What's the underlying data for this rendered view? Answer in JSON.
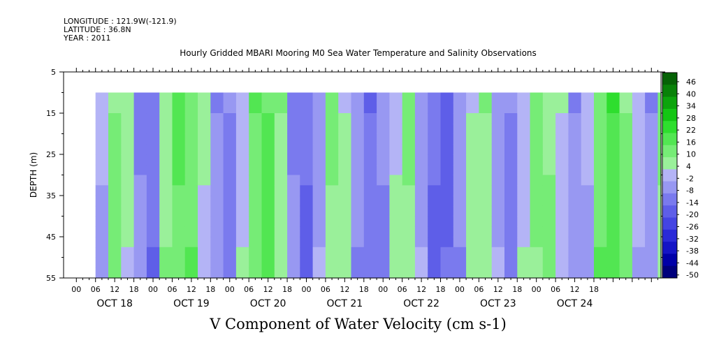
{
  "header": {
    "longitude": "LONGITUDE : 121.9W(-121.9)",
    "latitude": "LATITUDE : 36.8N",
    "year": "YEAR : 2011"
  },
  "title": "Hourly Gridded MBARI Mooring M0 Sea Water Temperature and Salinity Observations",
  "variable_title": "V Component of Water Velocity (cm s-1)",
  "chart_data": {
    "type": "heatmap",
    "title": "Hourly Gridded MBARI Mooring M0 Sea Water Temperature and Salinity Observations",
    "xlabel": "",
    "ylabel": "DEPTH (m)",
    "colorbar_label": "V Component of Water Velocity (cm s-1)",
    "x_tick_labels": [
      "00",
      "06",
      "12",
      "18",
      "00",
      "06",
      "12",
      "18",
      "00",
      "06",
      "12",
      "18",
      "00",
      "06",
      "12",
      "18",
      "00",
      "06",
      "12",
      "18",
      "00",
      "06",
      "12",
      "18",
      "00",
      "06",
      "12",
      "18"
    ],
    "x_date_labels": [
      "OCT 18",
      "OCT 19",
      "OCT 20",
      "OCT 21",
      "OCT 22",
      "OCT 23",
      "OCT 24"
    ],
    "x_range_hours": [
      -4,
      183
    ],
    "data_start_hour": 6,
    "data_end_hour": 183,
    "y_range": [
      5,
      55
    ],
    "y_ticks": [
      5,
      15,
      25,
      35,
      45,
      55
    ],
    "y_invert": true,
    "data_depth_range": [
      10,
      55
    ],
    "colorbar_levels": [
      -50,
      -44,
      -38,
      -32,
      -26,
      -20,
      -14,
      -8,
      -2,
      4,
      10,
      16,
      22,
      28,
      34,
      40,
      46
    ],
    "colorbar_ticks": [
      "46",
      "40",
      "34",
      "28",
      "22",
      "16",
      "10",
      "4",
      "-2",
      "-8",
      "-14",
      "-20",
      "-26",
      "-32",
      "-38",
      "-44",
      "-50"
    ],
    "columns": [
      {
        "hour": 6,
        "v": -2
      },
      {
        "hour": 10,
        "v": 12
      },
      {
        "hour": 14,
        "v": 6
      },
      {
        "hour": 18,
        "v": -8
      },
      {
        "hour": 22,
        "v": -12
      },
      {
        "hour": 26,
        "v": 8
      },
      {
        "hour": 30,
        "v": 16
      },
      {
        "hour": 34,
        "v": 14
      },
      {
        "hour": 38,
        "v": 4
      },
      {
        "hour": 42,
        "v": -6
      },
      {
        "hour": 46,
        "v": -10
      },
      {
        "hour": 50,
        "v": 2
      },
      {
        "hour": 54,
        "v": 14
      },
      {
        "hour": 58,
        "v": 18
      },
      {
        "hour": 62,
        "v": 8
      },
      {
        "hour": 66,
        "v": -8
      },
      {
        "hour": 70,
        "v": -14
      },
      {
        "hour": 74,
        "v": -4
      },
      {
        "hour": 78,
        "v": 10
      },
      {
        "hour": 82,
        "v": 6
      },
      {
        "hour": 86,
        "v": -6
      },
      {
        "hour": 90,
        "v": -12
      },
      {
        "hour": 94,
        "v": -8
      },
      {
        "hour": 98,
        "v": 4
      },
      {
        "hour": 102,
        "v": 10
      },
      {
        "hour": 106,
        "v": -4
      },
      {
        "hour": 110,
        "v": -14
      },
      {
        "hour": 114,
        "v": -16
      },
      {
        "hour": 118,
        "v": -6
      },
      {
        "hour": 122,
        "v": 6
      },
      {
        "hour": 126,
        "v": 8
      },
      {
        "hour": 130,
        "v": -4
      },
      {
        "hour": 134,
        "v": -10
      },
      {
        "hour": 138,
        "v": 2
      },
      {
        "hour": 142,
        "v": 12
      },
      {
        "hour": 146,
        "v": 10
      },
      {
        "hour": 150,
        "v": 2
      },
      {
        "hour": 154,
        "v": -6
      },
      {
        "hour": 158,
        "v": -2
      },
      {
        "hour": 162,
        "v": 14
      },
      {
        "hour": 166,
        "v": 20
      },
      {
        "hour": 170,
        "v": 12
      },
      {
        "hour": 174,
        "v": 0
      },
      {
        "hour": 178,
        "v": -6
      },
      {
        "hour": 182,
        "v": 10
      }
    ],
    "depth_gradient_cm_s_per_m": 0.12
  }
}
